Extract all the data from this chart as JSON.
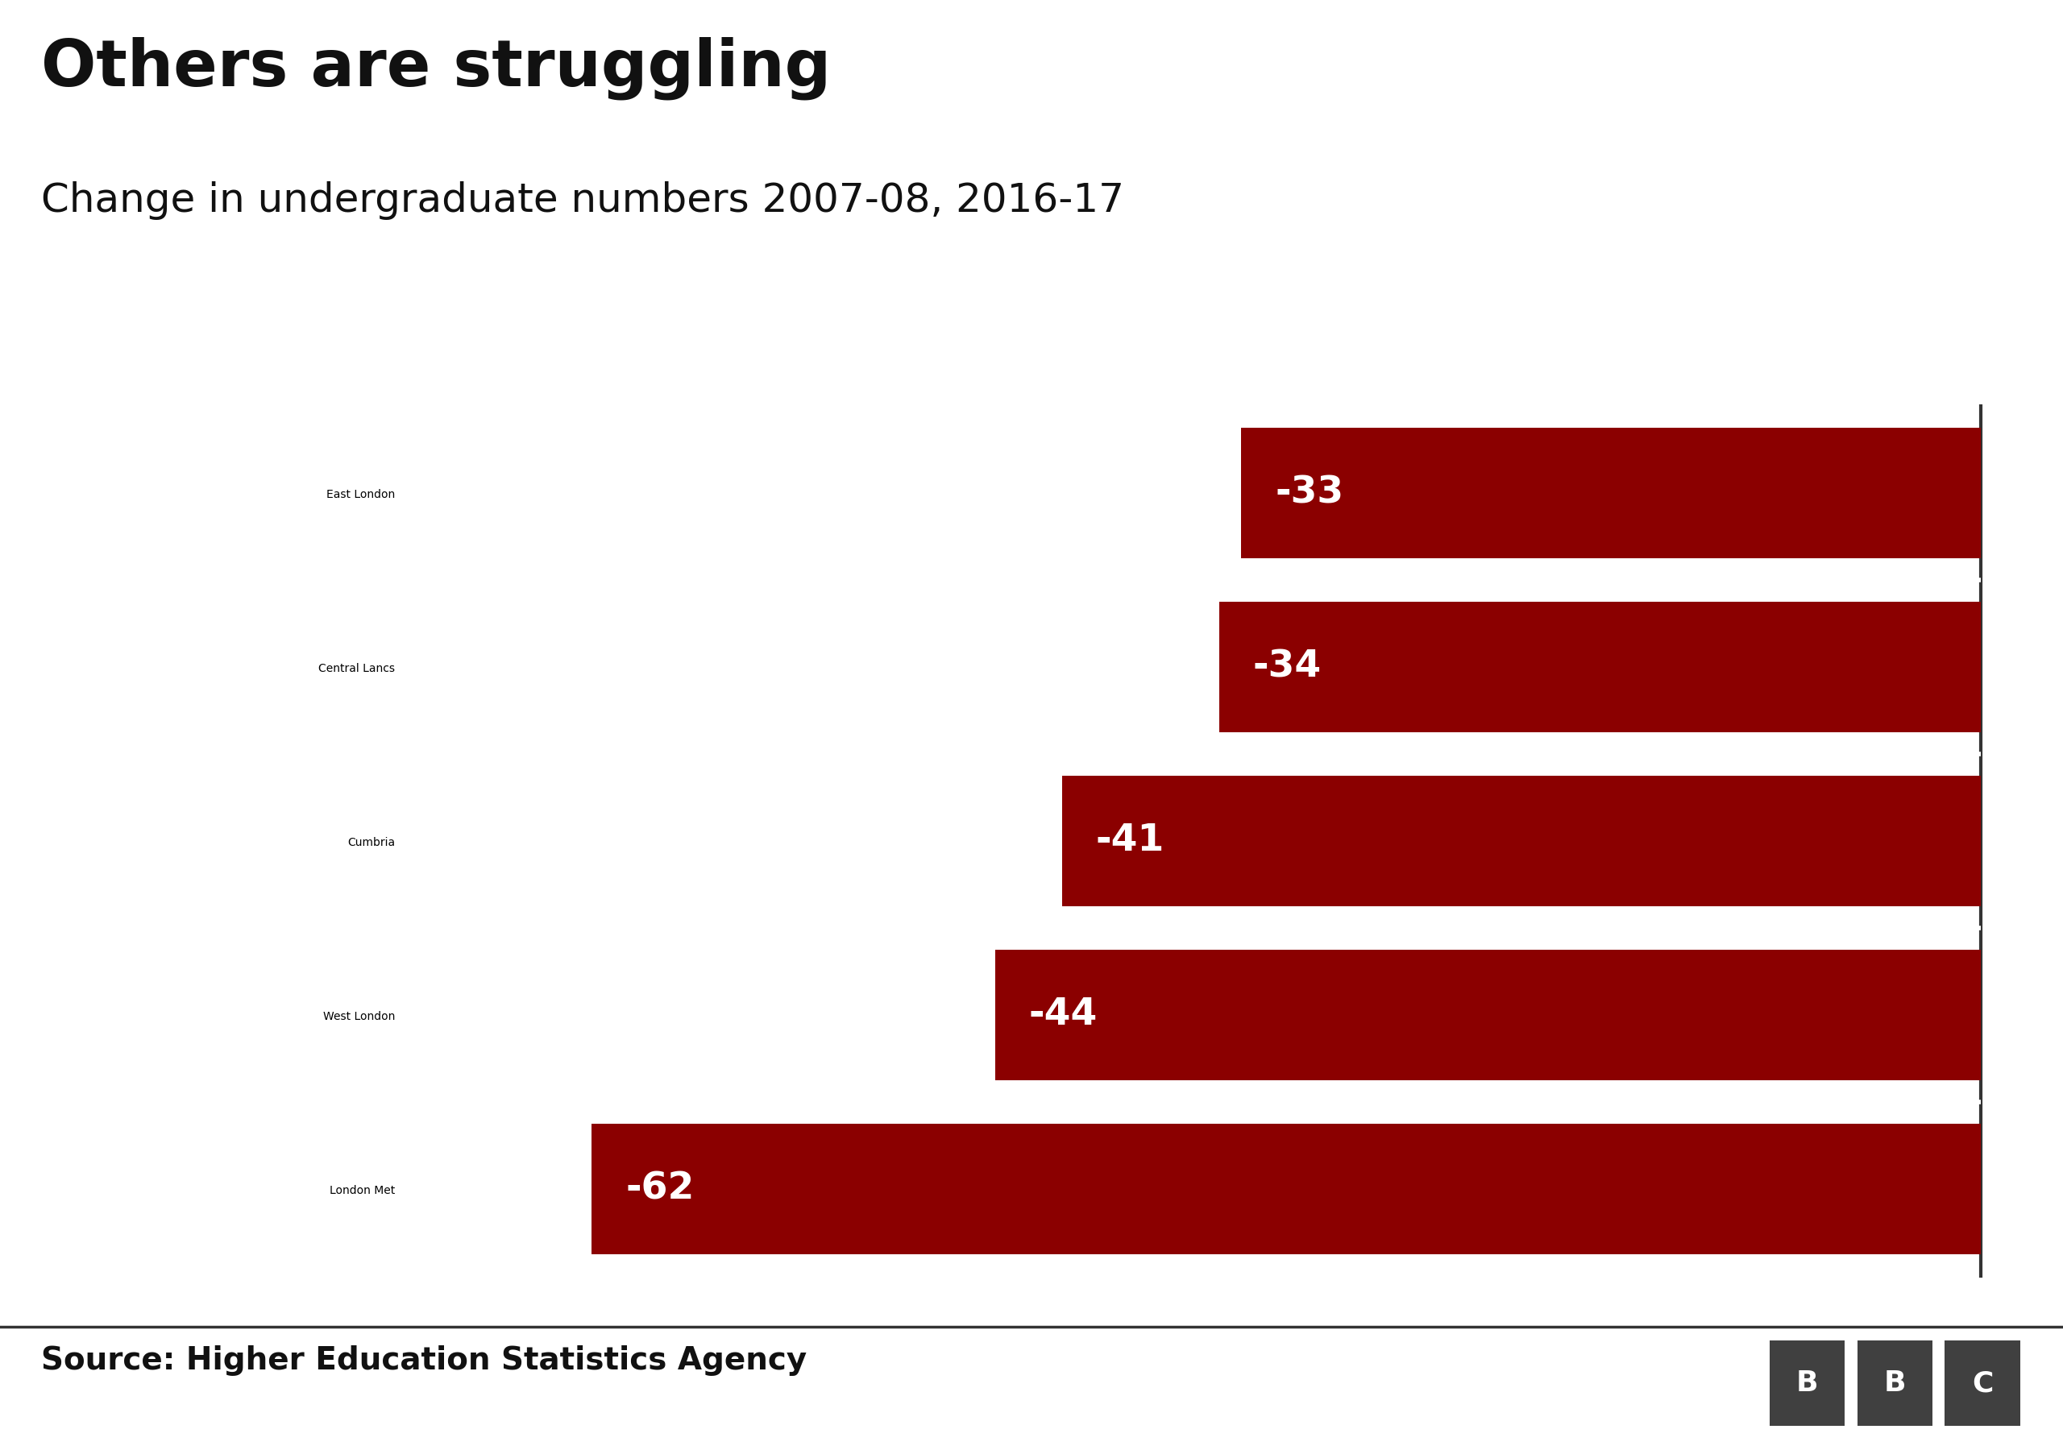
{
  "title": "Others are struggling",
  "subtitle": "Change in undergraduate numbers 2007-08, 2016-17",
  "source": "Source: Higher Education Statistics Agency",
  "categories": [
    "East London",
    "Central Lancs",
    "Cumbria",
    "West London",
    "London Met"
  ],
  "values": [
    -33,
    -34,
    -41,
    -44,
    -62
  ],
  "bar_color": "#8B0000",
  "bar_label_color": "#ffffff",
  "background_color": "#ffffff",
  "title_color": "#111111",
  "subtitle_color": "#111111",
  "source_color": "#111111",
  "label_color": "#111111",
  "xlim_min": -70,
  "xlim_max": 0,
  "title_fontsize": 58,
  "subtitle_fontsize": 36,
  "source_fontsize": 28,
  "label_fontsize": 36,
  "bar_label_fontsize": 34,
  "bbc_box_color": "#404040",
  "bbc_text_color": "#ffffff"
}
